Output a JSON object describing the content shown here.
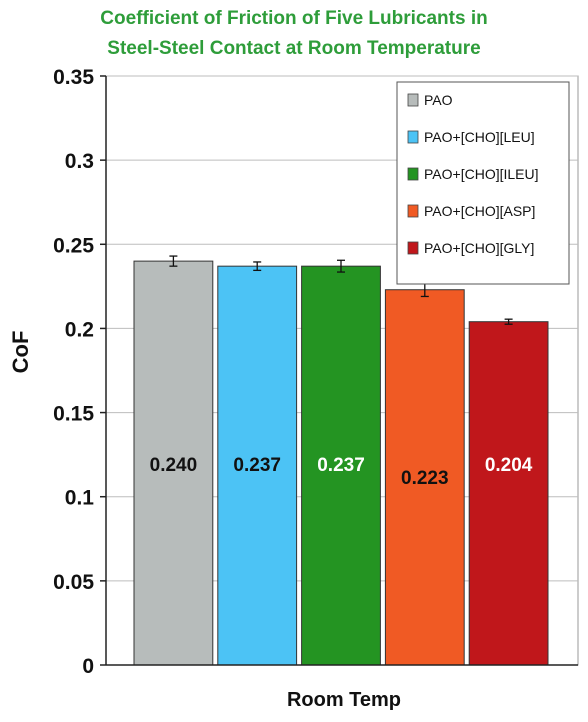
{
  "chart_data": {
    "type": "bar",
    "title_lines": [
      "Coefficient of Friction of Five Lubricants in",
      "Steel-Steel Contact at Room Temperature"
    ],
    "xlabel": "Room Temp",
    "ylabel": "CoF",
    "ylim": [
      0,
      0.35
    ],
    "yticks": [
      "0",
      "0.05",
      "0.1",
      "0.15",
      "0.2",
      "0.25",
      "0.3",
      "0.35"
    ],
    "grid": true,
    "legend_position": "top-right",
    "series": [
      {
        "name": "PAO",
        "value": 0.24,
        "error": 0.003,
        "label": "0.240",
        "color": "#b7bcbb",
        "label_color": "#111111"
      },
      {
        "name": "PAO+[CHO][LEU]",
        "value": 0.237,
        "error": 0.0025,
        "label": "0.237",
        "color": "#4cc3f5",
        "label_color": "#111111"
      },
      {
        "name": "PAO+[CHO][ILEU]",
        "value": 0.237,
        "error": 0.0035,
        "label": "0.237",
        "color": "#249422",
        "label_color": "#ffffff"
      },
      {
        "name": "PAO+[CHO][ASP]",
        "value": 0.223,
        "error": 0.004,
        "label": "0.223",
        "color": "#f05a24",
        "label_color": "#111111"
      },
      {
        "name": "PAO+[CHO][GLY]",
        "value": 0.204,
        "error": 0.0015,
        "label": "0.204",
        "color": "#c0171b",
        "label_color": "#ffffff"
      }
    ],
    "colors": {
      "title": "#2e9d3a"
    }
  }
}
